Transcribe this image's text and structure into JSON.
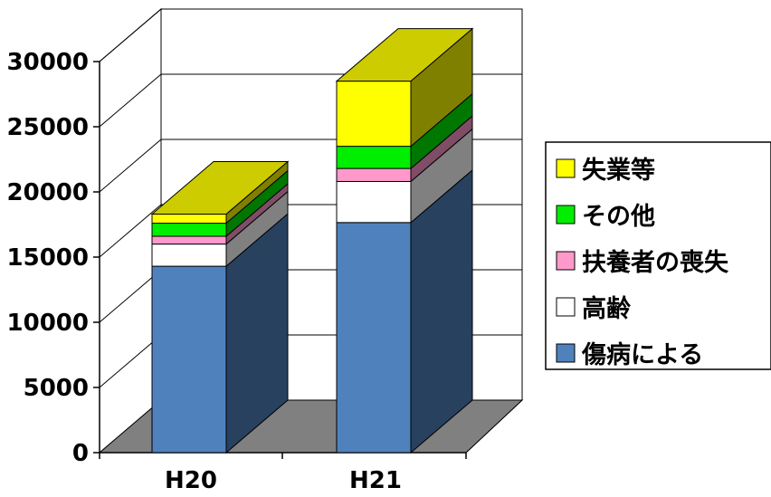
{
  "chart_data": {
    "type": "bar",
    "stacked": true,
    "three_d": true,
    "categories": [
      "H20",
      "H21"
    ],
    "series": [
      {
        "name": "傷病による",
        "values": [
          14300,
          17650
        ],
        "color": "#4f81bd"
      },
      {
        "name": "高齢",
        "values": [
          1700,
          3150
        ],
        "color": "#ffffff"
      },
      {
        "name": "扶養者の喪失",
        "values": [
          600,
          1000
        ],
        "color": "#ff99cc"
      },
      {
        "name": "その他",
        "values": [
          1000,
          1700
        ],
        "color": "#00ee00"
      },
      {
        "name": "失業等",
        "values": [
          700,
          5000
        ],
        "color": "#ffff00"
      }
    ],
    "yticks": [
      0,
      5000,
      10000,
      15000,
      20000,
      25000,
      30000
    ],
    "ylim": [
      0,
      30000
    ],
    "grid": true,
    "legend_position": "right"
  }
}
